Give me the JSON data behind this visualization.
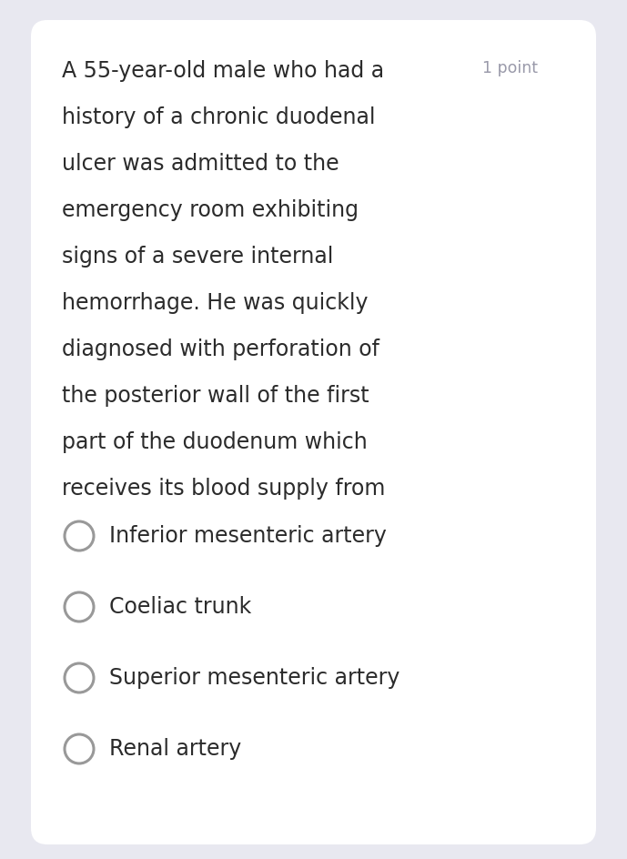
{
  "background_color": "#e8e8f0",
  "card_color": "#ffffff",
  "question_text_lines": [
    "A 55-year-old male who had a",
    "history of a chronic duodenal",
    "ulcer was admitted to the",
    "emergency room exhibiting",
    "signs of a severe internal",
    "hemorrhage. He was quickly",
    "diagnosed with perforation of",
    "the posterior wall of the first",
    "part of the duodenum which",
    "receives its blood supply from"
  ],
  "points_label": "1 point",
  "options": [
    "Inferior mesenteric artery",
    "Coeliac trunk",
    "Superior mesenteric artery",
    "Renal artery"
  ],
  "question_font_size": 17,
  "option_font_size": 17,
  "points_font_size": 12.5,
  "question_text_color": "#2b2b2b",
  "option_text_color": "#2b2b2b",
  "points_text_color": "#9a9aaa",
  "circle_edge_color": "#999999",
  "circle_fill_color": "#ffffff",
  "background_color_outer": "#dcdce8"
}
